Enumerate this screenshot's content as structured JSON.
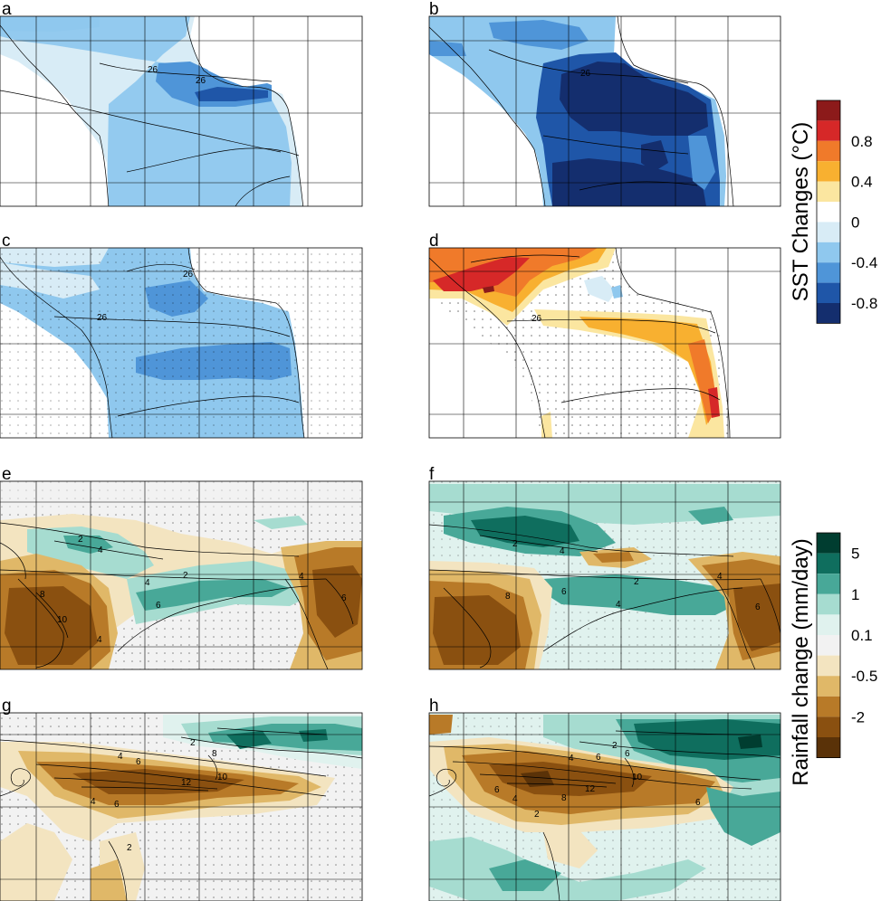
{
  "chart_data": [
    {
      "type": "heatmap",
      "description_role": "sst_panels",
      "panels": [
        {
          "label": "a",
          "contour_labels": [
            "26",
            "26"
          ]
        },
        {
          "label": "b",
          "contour_labels": [
            "26"
          ]
        },
        {
          "label": "c",
          "contour_labels": [
            "26",
            "26"
          ]
        },
        {
          "label": "d",
          "contour_labels": [
            "26"
          ]
        }
      ],
      "colorbar": {
        "title": "SST Changes (°C)",
        "ticks": [
          "0.8",
          "0.4",
          "0",
          "-0.4",
          "-0.8"
        ],
        "colors": [
          "#8c1a1a",
          "#d62828",
          "#f07a2a",
          "#f8b030",
          "#fbe6a0",
          "#ffffff",
          "#d8ecf6",
          "#8fc8ee",
          "#4f95d8",
          "#1f56a8",
          "#142e6e"
        ]
      }
    },
    {
      "type": "heatmap",
      "description_role": "rainfall_panels",
      "panels": [
        {
          "label": "e",
          "contour_labels": [
            "2",
            "4",
            "2",
            "4",
            "8",
            "6",
            "4",
            "6",
            "10",
            "4"
          ]
        },
        {
          "label": "f",
          "contour_labels": [
            "2",
            "4",
            "2",
            "6",
            "4",
            "8",
            "6",
            "4"
          ]
        },
        {
          "label": "g",
          "contour_labels": [
            "2",
            "6",
            "4",
            "10",
            "12",
            "6",
            "4",
            "2",
            "8"
          ]
        },
        {
          "label": "h",
          "contour_labels": [
            "2",
            "6",
            "4",
            "10",
            "12",
            "8",
            "6",
            "6",
            "4",
            "6",
            "2"
          ]
        }
      ],
      "colorbar": {
        "title": "Rainfall change (mm/day)",
        "ticks": [
          "5",
          "1",
          "0.1",
          "-0.5",
          "-2"
        ],
        "colors": [
          "#003d30",
          "#0f6e5e",
          "#48a898",
          "#a6dcd0",
          "#e0f2ee",
          "#f2f2f2",
          "#f3e4c0",
          "#e0b868",
          "#b87a28",
          "#8a5010",
          "#5a3208"
        ]
      }
    }
  ]
}
